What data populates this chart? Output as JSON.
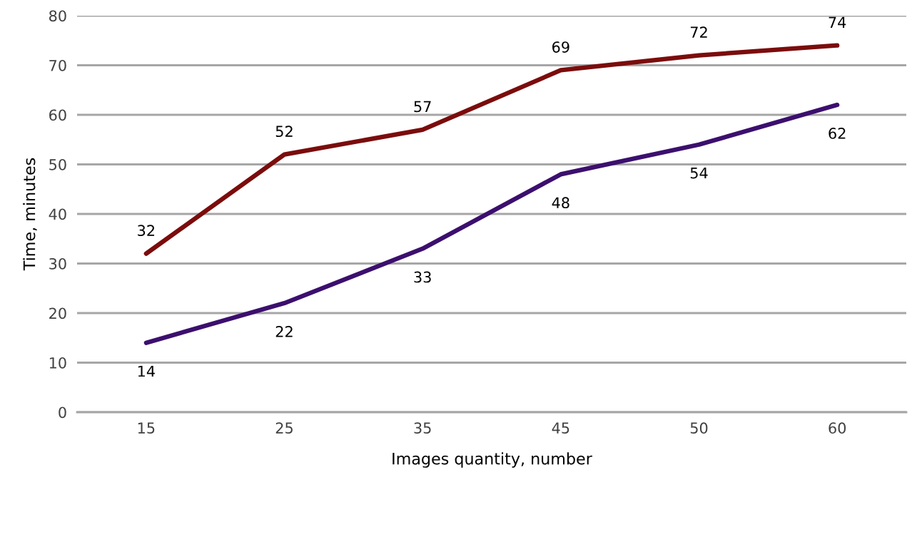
{
  "chart_data": {
    "type": "line",
    "xlabel": "Images quantity, number",
    "ylabel": "Time, minutes",
    "categories": [
      "15",
      "25",
      "35",
      "45",
      "50",
      "60"
    ],
    "series": [
      {
        "color": "#7b0c0c",
        "values": [
          32,
          52,
          57,
          69,
          72,
          74
        ]
      },
      {
        "color": "#3c0f6e",
        "values": [
          14,
          22,
          33,
          48,
          54,
          62
        ]
      }
    ],
    "ylim": [
      0,
      80
    ],
    "yticks": [
      0,
      10,
      20,
      30,
      40,
      50,
      60,
      70,
      80
    ],
    "grid": "y",
    "data_labels": true,
    "marker": "none",
    "line_style": "solid"
  }
}
